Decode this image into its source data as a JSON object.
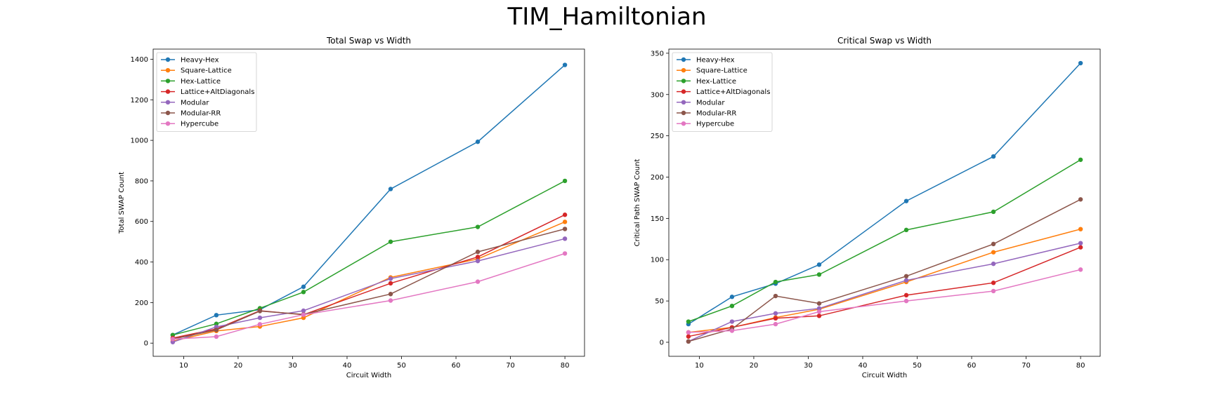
{
  "suptitle": "TIM_Hamiltonian",
  "chart_data": [
    {
      "type": "line",
      "title": "Total Swap vs Width",
      "xlabel": "Circuit Width",
      "ylabel": "Total SWAP Count",
      "xlim": [
        4.4,
        83.6
      ],
      "ylim": [
        -65,
        1450
      ],
      "xticks": [
        10,
        20,
        30,
        40,
        50,
        60,
        70,
        80
      ],
      "yticks": [
        0,
        200,
        400,
        600,
        800,
        1000,
        1200,
        1400
      ],
      "legend": "upper left",
      "x": [
        8,
        16,
        24,
        32,
        48,
        64,
        80
      ],
      "series": [
        {
          "name": "Heavy-Hex",
          "color": "#1f77b4",
          "values": [
            40,
            138,
            165,
            278,
            760,
            993,
            1372
          ]
        },
        {
          "name": "Square-Lattice",
          "color": "#ff7f0e",
          "values": [
            10,
            60,
            82,
            125,
            324,
            415,
            598
          ]
        },
        {
          "name": "Hex-Lattice",
          "color": "#2ca02c",
          "values": [
            40,
            95,
            172,
            252,
            500,
            573,
            800
          ]
        },
        {
          "name": "Lattice+AltDiagonals",
          "color": "#d62728",
          "values": [
            25,
            70,
            160,
            140,
            295,
            425,
            633
          ]
        },
        {
          "name": "Modular",
          "color": "#9467bd",
          "values": [
            5,
            80,
            125,
            160,
            318,
            405,
            515
          ]
        },
        {
          "name": "Modular-RR",
          "color": "#8c564b",
          "values": [
            20,
            65,
            158,
            142,
            242,
            450,
            563
          ]
        },
        {
          "name": "Hypercube",
          "color": "#e377c2",
          "values": [
            20,
            32,
            93,
            140,
            210,
            303,
            442
          ]
        }
      ]
    },
    {
      "type": "line",
      "title": "Critical Swap vs Width",
      "xlabel": "Circuit Width",
      "ylabel": "Critical Path SWAP Count",
      "xlim": [
        4.4,
        83.6
      ],
      "ylim": [
        -17,
        355
      ],
      "xticks": [
        10,
        20,
        30,
        40,
        50,
        60,
        70,
        80
      ],
      "yticks": [
        0,
        50,
        100,
        150,
        200,
        250,
        300,
        350
      ],
      "legend": "upper left",
      "x": [
        8,
        16,
        24,
        32,
        48,
        64,
        80
      ],
      "series": [
        {
          "name": "Heavy-Hex",
          "color": "#1f77b4",
          "values": [
            22,
            55,
            71,
            94,
            171,
            225,
            338
          ]
        },
        {
          "name": "Square-Lattice",
          "color": "#ff7f0e",
          "values": [
            12,
            18,
            30,
            40,
            73,
            109,
            137
          ]
        },
        {
          "name": "Hex-Lattice",
          "color": "#2ca02c",
          "values": [
            25,
            44,
            73,
            82,
            136,
            158,
            221
          ]
        },
        {
          "name": "Lattice+AltDiagonals",
          "color": "#d62728",
          "values": [
            7,
            18,
            29,
            32,
            57,
            72,
            115
          ]
        },
        {
          "name": "Modular",
          "color": "#9467bd",
          "values": [
            1,
            25,
            35,
            41,
            75,
            95,
            120
          ]
        },
        {
          "name": "Modular-RR",
          "color": "#8c564b",
          "values": [
            1,
            16,
            56,
            47,
            80,
            119,
            173
          ]
        },
        {
          "name": "Hypercube",
          "color": "#e377c2",
          "values": [
            12,
            14,
            22,
            37,
            50,
            62,
            88
          ]
        }
      ]
    }
  ]
}
